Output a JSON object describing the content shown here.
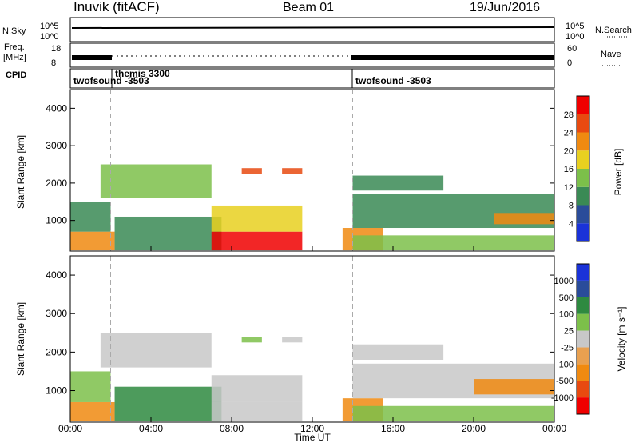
{
  "header": {
    "station": "Inuvik (fitACF)",
    "beam": "Beam 01",
    "date": "19/Jun/2016"
  },
  "strips": {
    "nsky": {
      "label": "N.Sky",
      "ticks": [
        "10^5",
        "10^0"
      ]
    },
    "nsearch": {
      "label": "N.Search",
      "ticks": [
        "10^5",
        "10^0"
      ]
    },
    "freq": {
      "label_line1": "Freq.",
      "label_line2": "[MHz]",
      "ticks": [
        "18",
        "8"
      ]
    },
    "nave": {
      "label": "Nave",
      "ticks": [
        "60",
        "0"
      ]
    },
    "cpid": {
      "label": "CPID",
      "segments": [
        {
          "start_hour": 0,
          "text": "twofsound -3503"
        },
        {
          "start_hour": 2,
          "text": "themis 3300"
        },
        {
          "start_hour": 14,
          "text": "twofsound -3503"
        }
      ]
    }
  },
  "x_axis": {
    "label": "Time UT",
    "ticks": [
      "00:00",
      "04:00",
      "08:00",
      "12:00",
      "16:00",
      "20:00",
      "00:00"
    ],
    "tick_hours": [
      0,
      4,
      8,
      12,
      16,
      20,
      24
    ]
  },
  "colors": {
    "power": [
      "#1a32d8",
      "#2a4c9a",
      "#3a8a55",
      "#7cc04a",
      "#e8d020",
      "#f08a10",
      "#e84a10",
      "#f00000"
    ],
    "velocity": [
      "#f00000",
      "#e84a10",
      "#f08a10",
      "#e8a050",
      "#c8c8c8",
      "#7cc04a",
      "#2e8a40",
      "#2a4c9a",
      "#1a32d8"
    ]
  },
  "chart_data": [
    {
      "type": "heatmap",
      "name": "power",
      "ylabel": "Slant Range [km]",
      "xlabel": "",
      "xlim": [
        0,
        24
      ],
      "ylim": [
        180,
        4500
      ],
      "y_ticks": [
        1000,
        2000,
        3000,
        4000
      ],
      "colorbar_label": "Power [dB]",
      "colorbar_ticks": [
        "4",
        "8",
        "12",
        "16",
        "20",
        "24",
        "28"
      ],
      "colorbar_range": [
        0,
        30
      ],
      "mode_change_hours": [
        2,
        14
      ],
      "echo_regions": [
        {
          "t0": 0.0,
          "t1": 2.2,
          "r0": 200,
          "r1": 700,
          "level": 22
        },
        {
          "t0": 0.0,
          "t1": 2.0,
          "r0": 700,
          "r1": 1500,
          "level": 8
        },
        {
          "t0": 1.5,
          "t1": 7.0,
          "r0": 1600,
          "r1": 2500,
          "level": 12
        },
        {
          "t0": 2.2,
          "t1": 7.5,
          "r0": 200,
          "r1": 1100,
          "level": 10
        },
        {
          "t0": 7.0,
          "t1": 11.5,
          "r0": 200,
          "r1": 700,
          "level": 28
        },
        {
          "t0": 7.0,
          "t1": 11.5,
          "r0": 700,
          "r1": 1400,
          "level": 18
        },
        {
          "t0": 8.5,
          "t1": 9.5,
          "r0": 2250,
          "r1": 2400,
          "level": 24
        },
        {
          "t0": 10.5,
          "t1": 11.5,
          "r0": 2250,
          "r1": 2400,
          "level": 24
        },
        {
          "t0": 13.5,
          "t1": 15.5,
          "r0": 200,
          "r1": 800,
          "level": 22
        },
        {
          "t0": 14.0,
          "t1": 24.0,
          "r0": 200,
          "r1": 600,
          "level": 14
        },
        {
          "t0": 14.0,
          "t1": 24.0,
          "r0": 800,
          "r1": 1700,
          "level": 8
        },
        {
          "t0": 14.0,
          "t1": 18.5,
          "r0": 1800,
          "r1": 2200,
          "level": 10
        },
        {
          "t0": 21.0,
          "t1": 24.0,
          "r0": 900,
          "r1": 1200,
          "level": 20
        }
      ]
    },
    {
      "type": "heatmap",
      "name": "velocity",
      "ylabel": "Slant Range [km]",
      "xlabel": "Time UT",
      "xlim": [
        0,
        24
      ],
      "ylim": [
        180,
        4500
      ],
      "y_ticks": [
        1000,
        2000,
        3000,
        4000
      ],
      "colorbar_label": "Velocity [m s⁻¹]",
      "colorbar_ticks": [
        "-1000",
        "-500",
        "-100",
        "-25",
        "25",
        "100",
        "500",
        "1000"
      ],
      "mode_change_hours": [
        2,
        14
      ],
      "echo_regions": [
        {
          "t0": 0.0,
          "t1": 2.2,
          "r0": 200,
          "r1": 700,
          "level": -300
        },
        {
          "t0": 0.0,
          "t1": 2.0,
          "r0": 700,
          "r1": 1500,
          "level": 50
        },
        {
          "t0": 1.5,
          "t1": 7.0,
          "r0": 1600,
          "r1": 2500,
          "level": 0
        },
        {
          "t0": 2.2,
          "t1": 7.5,
          "r0": 200,
          "r1": 1100,
          "level": 120
        },
        {
          "t0": 7.0,
          "t1": 11.5,
          "r0": 200,
          "r1": 700,
          "level": 0
        },
        {
          "t0": 7.0,
          "t1": 11.5,
          "r0": 700,
          "r1": 1400,
          "level": 0
        },
        {
          "t0": 8.5,
          "t1": 9.5,
          "r0": 2250,
          "r1": 2400,
          "level": 50
        },
        {
          "t0": 10.5,
          "t1": 11.5,
          "r0": 2250,
          "r1": 2400,
          "level": 0
        },
        {
          "t0": 13.5,
          "t1": 15.5,
          "r0": 200,
          "r1": 800,
          "level": -300
        },
        {
          "t0": 14.0,
          "t1": 24.0,
          "r0": 200,
          "r1": 600,
          "level": 60
        },
        {
          "t0": 14.0,
          "t1": 24.0,
          "r0": 800,
          "r1": 1700,
          "level": 0
        },
        {
          "t0": 14.0,
          "t1": 18.5,
          "r0": 1800,
          "r1": 2200,
          "level": 0
        },
        {
          "t0": 20.0,
          "t1": 24.0,
          "r0": 900,
          "r1": 1300,
          "level": -300
        }
      ]
    }
  ]
}
